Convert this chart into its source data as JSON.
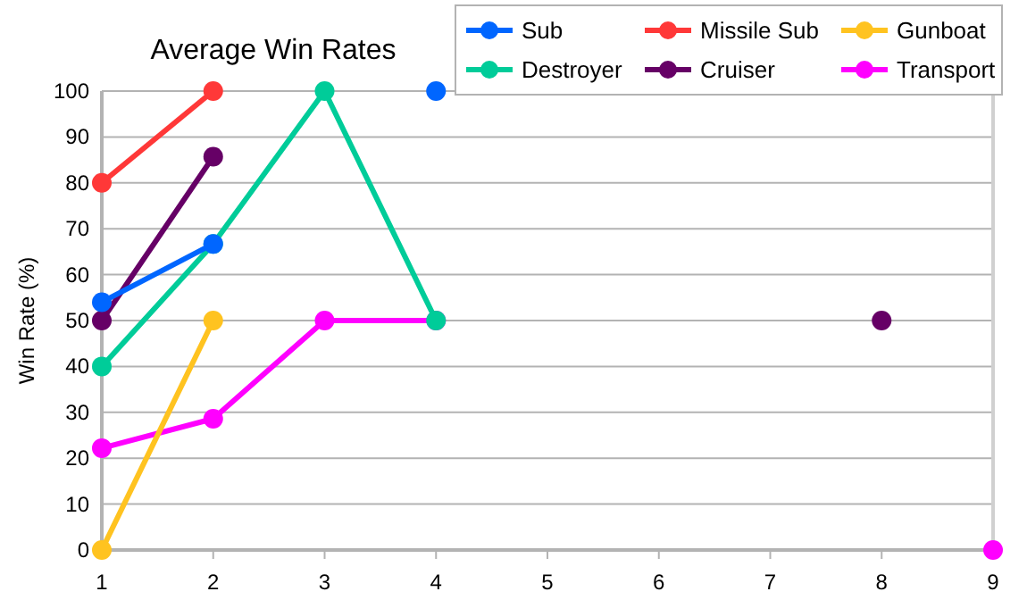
{
  "chart_data": {
    "type": "line",
    "title": "Average Win Rates",
    "ylabel": "Win Rate (%)",
    "x": [
      1,
      2,
      3,
      4,
      5,
      6,
      7,
      8,
      9
    ],
    "series": [
      {
        "name": "Sub",
        "color": "#0066ff",
        "values": [
          54,
          66.7,
          null,
          100,
          null,
          null,
          null,
          null,
          null
        ]
      },
      {
        "name": "Missile Sub",
        "color": "#ff3838",
        "values": [
          80,
          100,
          null,
          null,
          null,
          null,
          null,
          null,
          null
        ]
      },
      {
        "name": "Gunboat",
        "color": "#ffc320",
        "values": [
          0,
          50,
          null,
          null,
          null,
          null,
          null,
          null,
          null
        ]
      },
      {
        "name": "Destroyer",
        "color": "#00cc99",
        "values": [
          40,
          66.7,
          100,
          50,
          null,
          null,
          null,
          null,
          null
        ]
      },
      {
        "name": "Cruiser",
        "color": "#660066",
        "values": [
          50,
          85.7,
          null,
          null,
          null,
          null,
          null,
          50,
          null
        ]
      },
      {
        "name": "Transport",
        "color": "#ff00ff",
        "values": [
          22.2,
          28.6,
          50,
          50,
          null,
          null,
          null,
          null,
          0
        ]
      }
    ],
    "xlim": [
      1,
      9
    ],
    "xticks": [
      1,
      2,
      3,
      4,
      5,
      6,
      7,
      8,
      9
    ],
    "ylim": [
      0,
      100
    ],
    "yticks": [
      0,
      10,
      20,
      30,
      40,
      50,
      60,
      70,
      80,
      90,
      100
    ],
    "grid": "y",
    "legend": "top right",
    "marker": "circle",
    "line_style": "solid"
  }
}
